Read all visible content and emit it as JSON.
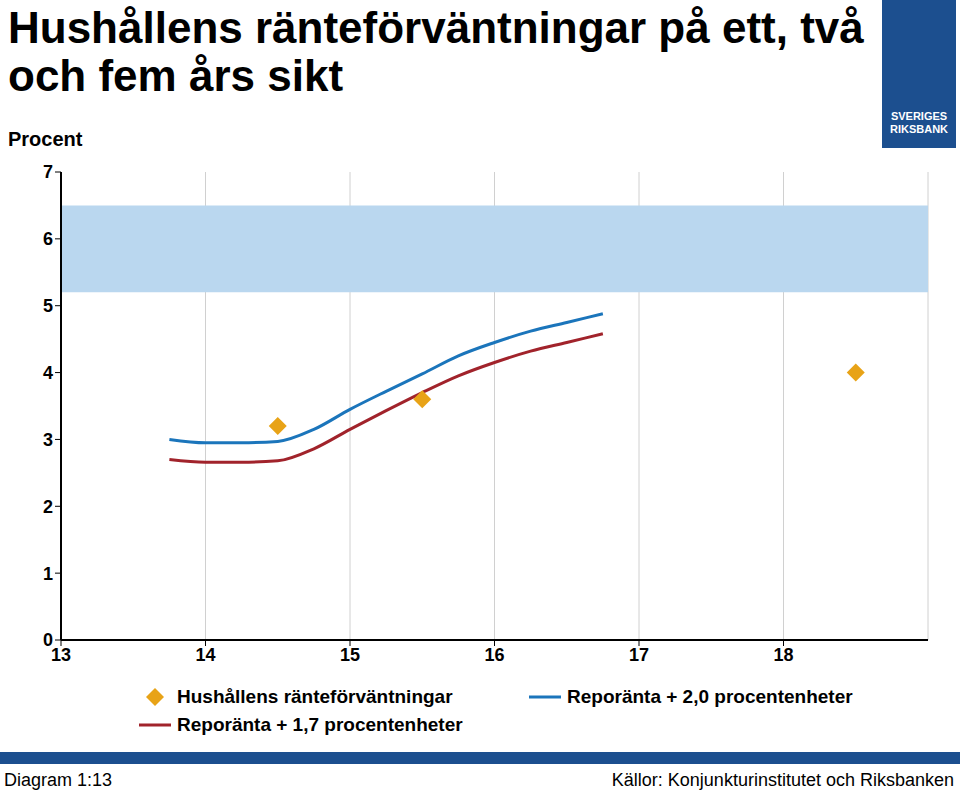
{
  "chart_data": {
    "type": "line",
    "title": "Hushållens ränteförväntningar på ett, två och fem års sikt",
    "y_label": "Procent",
    "footnote": "Diagram 1:13",
    "source": "Källor: Konjunkturinstitutet och Riksbanken",
    "logo": [
      "SVERIGES",
      "RIKSBANK"
    ],
    "xlim": [
      13,
      19
    ],
    "xticks": [
      13,
      14,
      15,
      16,
      17,
      18
    ],
    "ylim": [
      0,
      7
    ],
    "yticks": [
      0,
      1,
      2,
      3,
      4,
      5,
      6,
      7
    ],
    "grid": true,
    "shaded_range": [
      5.2,
      6.5
    ],
    "shaded_color": "#bad7ef",
    "series": [
      {
        "name": "Hushållens ränteförväntningar",
        "type": "scatter",
        "marker": "diamond",
        "color": "#e8a317",
        "x": [
          14.5,
          15.5,
          18.5
        ],
        "values": [
          3.2,
          3.6,
          4.0
        ]
      },
      {
        "name": "Reporänta + 2,0 procentenheter",
        "type": "line",
        "color": "#1b75bb",
        "x": [
          13.75,
          14,
          14.25,
          14.5,
          14.75,
          15,
          15.25,
          15.5,
          15.75,
          16,
          16.25,
          16.5,
          16.75
        ],
        "values": [
          3.0,
          2.95,
          2.95,
          2.97,
          3.15,
          3.45,
          3.72,
          3.98,
          4.25,
          4.45,
          4.62,
          4.75,
          4.88
        ]
      },
      {
        "name": "Reporänta + 1,7 procentenheter",
        "type": "line",
        "color": "#a1232b",
        "x": [
          13.75,
          14,
          14.25,
          14.5,
          14.75,
          15,
          15.25,
          15.5,
          15.75,
          16,
          16.25,
          16.5,
          16.75
        ],
        "values": [
          2.7,
          2.66,
          2.66,
          2.68,
          2.86,
          3.15,
          3.43,
          3.7,
          3.95,
          4.15,
          4.32,
          4.45,
          4.58
        ]
      }
    ]
  }
}
